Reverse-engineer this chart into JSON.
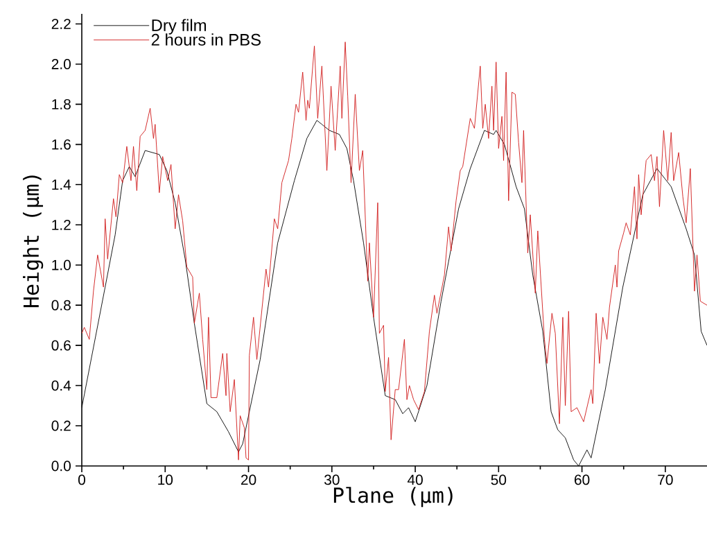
{
  "chart_data": {
    "type": "line",
    "xlabel": "Plane (μm)",
    "ylabel": "Height (μm)",
    "xlim": [
      0,
      75
    ],
    "ylim": [
      0,
      2.25
    ],
    "xticks": [
      0,
      10,
      20,
      30,
      40,
      50,
      60,
      70
    ],
    "yticks": [
      {
        "value": 0,
        "label": "0.0"
      },
      {
        "value": 0.2,
        "label": "0.2"
      },
      {
        "value": 0.4,
        "label": "0.4"
      },
      {
        "value": 0.6,
        "label": "0.6"
      },
      {
        "value": 0.8,
        "label": "0.8"
      },
      {
        "value": 1.0,
        "label": "1.0"
      },
      {
        "value": 1.2,
        "label": "1.2"
      },
      {
        "value": 1.4,
        "label": "1.4"
      },
      {
        "value": 1.6,
        "label": "1.6"
      },
      {
        "value": 1.8,
        "label": "1.8"
      },
      {
        "value": 2.0,
        "label": "2.0"
      },
      {
        "value": 2.2,
        "label": "2.2"
      }
    ],
    "legend": "top left",
    "grid": false,
    "series": [
      {
        "name": "Dry film",
        "color": "#000000",
        "x": [
          0,
          2.8,
          4.0,
          4.9,
          5.7,
          6.4,
          7.6,
          9.3,
          10.2,
          11.2,
          12.4,
          13.5,
          15.0,
          16.2,
          17.6,
          18.8,
          19.3,
          21.4,
          23.5,
          25.5,
          27.0,
          28.2,
          28.8,
          29.7,
          30.9,
          31.8,
          32.6,
          33.8,
          35.0,
          36.4,
          37.6,
          38.5,
          39.2,
          40.0,
          41.4,
          43.1,
          45.2,
          46.6,
          48.3,
          49.4,
          49.7,
          50.7,
          52.1,
          53.1,
          54.1,
          55.3,
          56.3,
          57.1,
          58.0,
          59.0,
          59.6,
          60.6,
          61.1,
          62.8,
          64.9,
          67.3,
          69.0,
          70.7,
          72.5,
          73.5,
          74.3,
          75
        ],
        "values": [
          0.29,
          0.89,
          1.15,
          1.42,
          1.49,
          1.44,
          1.57,
          1.55,
          1.47,
          1.31,
          1.03,
          0.71,
          0.31,
          0.27,
          0.17,
          0.07,
          0.11,
          0.53,
          1.11,
          1.42,
          1.63,
          1.72,
          1.7,
          1.67,
          1.65,
          1.58,
          1.42,
          1.11,
          0.74,
          0.35,
          0.33,
          0.26,
          0.29,
          0.22,
          0.4,
          0.82,
          1.28,
          1.48,
          1.67,
          1.65,
          1.67,
          1.6,
          1.39,
          1.28,
          0.95,
          0.67,
          0.27,
          0.18,
          0.14,
          0.03,
          0.0,
          0.08,
          0.04,
          0.38,
          0.89,
          1.35,
          1.48,
          1.39,
          1.18,
          1.05,
          0.67,
          0.6
        ]
      },
      {
        "name": "2 hours in PBS",
        "color": "#d01818",
        "x": [
          0,
          0.3,
          0.9,
          1.4,
          1.9,
          2.6,
          2.8,
          3.1,
          3.8,
          4.1,
          4.5,
          4.9,
          5.4,
          5.9,
          6.2,
          6.6,
          7.0,
          7.6,
          8.2,
          8.6,
          8.8,
          9.3,
          9.7,
          10.3,
          10.7,
          11.2,
          11.6,
          12.1,
          12.6,
          13.3,
          13.5,
          14.1,
          14.5,
          15.0,
          15.2,
          15.5,
          16.2,
          16.9,
          17.3,
          17.4,
          17.8,
          18.3,
          18.8,
          19.0,
          19.5,
          19.7,
          20.0,
          20.1,
          20.6,
          21.0,
          22.1,
          22.4,
          23.1,
          23.5,
          24.0,
          24.8,
          25.2,
          25.7,
          26.0,
          26.5,
          26.9,
          27.1,
          27.3,
          27.9,
          28.3,
          28.8,
          29.4,
          29.9,
          30.4,
          31.0,
          31.2,
          31.6,
          31.9,
          32.3,
          32.8,
          33.3,
          33.7,
          34.3,
          34.5,
          35.0,
          35.5,
          35.7,
          36.2,
          36.4,
          36.8,
          37.1,
          37.6,
          38.0,
          38.7,
          39.0,
          39.3,
          39.8,
          40.4,
          41.1,
          41.7,
          42.3,
          42.6,
          43.5,
          44.0,
          44.3,
          44.9,
          45.4,
          45.7,
          46.6,
          47.1,
          47.8,
          48.1,
          48.4,
          48.8,
          49.2,
          49.4,
          49.7,
          50.0,
          50.4,
          50.6,
          50.9,
          51.2,
          51.6,
          52.0,
          52.4,
          52.8,
          53.0,
          53.5,
          53.8,
          54.4,
          54.7,
          55.5,
          55.8,
          56.4,
          56.8,
          57.3,
          57.7,
          58.0,
          58.4,
          58.7,
          59.4,
          60.2,
          61.1,
          61.3,
          61.7,
          62.1,
          62.5,
          63.0,
          63.3,
          64.0,
          64.2,
          64.4,
          65.0,
          65.3,
          65.8,
          66.3,
          66.6,
          66.8,
          67.1,
          67.7,
          68.3,
          68.7,
          69.0,
          69.3,
          69.8,
          70.3,
          70.7,
          71.0,
          71.6,
          72.1,
          72.5,
          73.0,
          73.5,
          73.8,
          74.2,
          75
        ],
        "values": [
          0.66,
          0.69,
          0.63,
          0.87,
          1.05,
          0.89,
          1.23,
          1.03,
          1.33,
          1.24,
          1.45,
          1.41,
          1.59,
          1.42,
          1.59,
          1.37,
          1.64,
          1.67,
          1.78,
          1.63,
          1.7,
          1.36,
          1.54,
          1.42,
          1.5,
          1.18,
          1.35,
          1.22,
          0.99,
          0.94,
          0.71,
          0.86,
          0.63,
          0.38,
          0.74,
          0.34,
          0.34,
          0.56,
          0.35,
          0.56,
          0.27,
          0.43,
          0.03,
          0.25,
          0.19,
          0.04,
          0.03,
          0.55,
          0.74,
          0.53,
          0.98,
          0.89,
          1.23,
          1.18,
          1.41,
          1.52,
          1.63,
          1.8,
          1.76,
          1.96,
          1.72,
          1.82,
          1.78,
          2.09,
          1.73,
          1.99,
          1.47,
          1.89,
          1.57,
          1.99,
          1.73,
          2.11,
          1.84,
          1.41,
          1.85,
          1.47,
          1.57,
          0.92,
          1.11,
          0.74,
          1.31,
          0.66,
          0.7,
          0.37,
          0.54,
          0.13,
          0.38,
          0.38,
          0.63,
          0.33,
          0.4,
          0.33,
          0.28,
          0.37,
          0.67,
          0.85,
          0.76,
          0.95,
          1.19,
          1.07,
          1.32,
          1.47,
          1.49,
          1.73,
          1.68,
          1.99,
          1.68,
          1.8,
          1.63,
          1.89,
          1.67,
          2.01,
          1.58,
          1.74,
          1.52,
          1.96,
          1.32,
          1.86,
          1.85,
          1.61,
          1.41,
          1.67,
          1.06,
          1.25,
          0.86,
          1.17,
          0.63,
          0.51,
          0.76,
          0.66,
          0.21,
          0.74,
          0.3,
          0.77,
          0.27,
          0.29,
          0.22,
          0.38,
          0.31,
          0.76,
          0.51,
          0.74,
          0.63,
          0.79,
          1.0,
          0.89,
          1.07,
          1.16,
          1.21,
          1.15,
          1.39,
          1.13,
          1.45,
          1.25,
          1.52,
          1.55,
          1.42,
          1.54,
          1.29,
          1.67,
          1.42,
          1.66,
          1.42,
          1.56,
          1.34,
          1.21,
          1.48,
          0.87,
          1.05,
          0.82,
          0.8
        ]
      }
    ]
  }
}
